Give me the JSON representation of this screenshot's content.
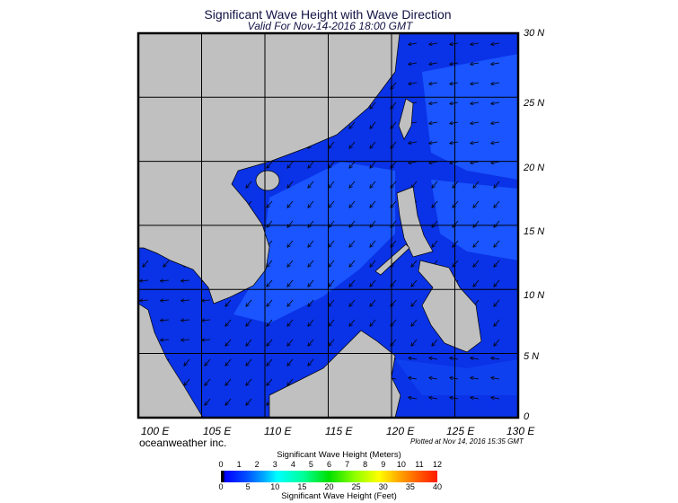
{
  "header": {
    "title": "Significant Wave Height with Wave Direction",
    "subtitle": "Valid For Nov-14-2016 18:00 GMT"
  },
  "map": {
    "lon_labels": [
      "100 E",
      "105 E",
      "110 E",
      "115 E",
      "120 E",
      "125 E",
      "130 E"
    ],
    "lat_labels": [
      "30 N",
      "25 N",
      "20 N",
      "15 N",
      "10 N",
      "5 N",
      "0"
    ],
    "colors": {
      "ocean_low": "#0a32e6",
      "ocean_mid": "#1a55ff",
      "land": "#c0c0c0",
      "arrow": "#000000"
    }
  },
  "footer": {
    "brand": "oceanweather inc.",
    "plotted": "Plotted at Nov 14, 2016 15:35 GMT"
  },
  "legend": {
    "meters_title": "Significant Wave Height (Meters)",
    "meters_ticks": [
      "0",
      "1",
      "2",
      "3",
      "4",
      "5",
      "6",
      "7",
      "8",
      "9",
      "10",
      "11",
      "12"
    ],
    "feet_title": "Significant Wave Height (Feet)",
    "feet_ticks": [
      "0",
      "5",
      "10",
      "15",
      "20",
      "25",
      "30",
      "35",
      "40"
    ]
  }
}
